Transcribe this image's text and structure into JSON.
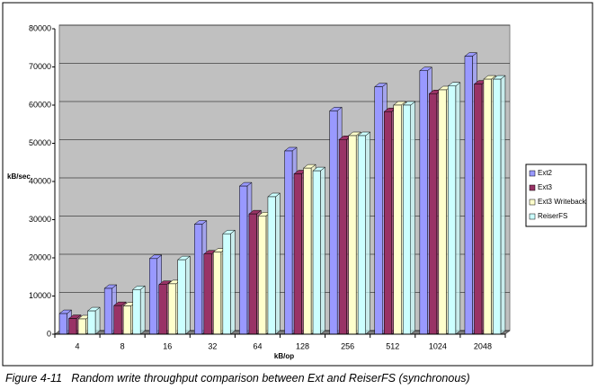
{
  "chart_data": {
    "type": "bar",
    "caption": "Figure 4-11   Random write throughput comparison between Ext and ReiserFS (synchronous)",
    "x_label": "kB/op",
    "y_label": "kB/sec",
    "categories": [
      "4",
      "8",
      "16",
      "32",
      "64",
      "128",
      "256",
      "512",
      "1024",
      "2048"
    ],
    "series": [
      {
        "name": "Ext2",
        "color": "#9999ff",
        "values": [
          5400,
          12000,
          19800,
          28800,
          38800,
          48000,
          58500,
          64800,
          69000,
          72800
        ]
      },
      {
        "name": "Ext3",
        "color": "#993366",
        "values": [
          4100,
          7500,
          13000,
          21000,
          31500,
          42000,
          51000,
          58300,
          63000,
          65500
        ]
      },
      {
        "name": "Ext3 Writeback",
        "color": "#ffffcc",
        "values": [
          4000,
          7400,
          13200,
          21500,
          31000,
          43500,
          52000,
          60000,
          64000,
          66800
        ]
      },
      {
        "name": "ReiserFS",
        "color": "#ccffff",
        "values": [
          6100,
          11700,
          19500,
          26300,
          36000,
          42800,
          52000,
          60000,
          65000,
          66800
        ]
      }
    ],
    "ylim": [
      0,
      80000
    ],
    "yticks": [
      0,
      10000,
      20000,
      30000,
      40000,
      50000,
      60000,
      70000,
      80000
    ],
    "grid": true,
    "legend": "right"
  }
}
